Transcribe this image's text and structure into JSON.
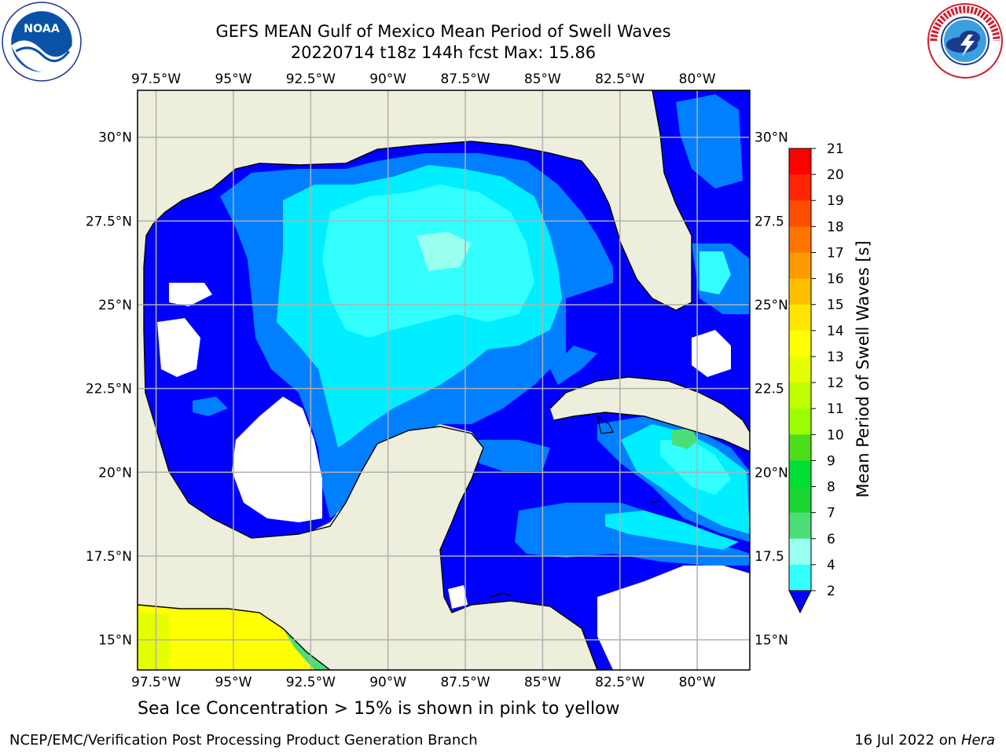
{
  "header": {
    "title_line1": "GEFS MEAN Gulf of Mexico Mean Period of Swell Waves",
    "title_line2": "20220714 t18z 144h fcst   Max: 15.86"
  },
  "logos": {
    "left": "noaa-logo",
    "right": "national-weather-service-logo"
  },
  "map": {
    "lon_ticks": [
      "97.5°W",
      "95°W",
      "92.5°W",
      "90°W",
      "87.5°W",
      "85°W",
      "82.5°W",
      "80°W"
    ],
    "lat_ticks_left": [
      "30°N",
      "27.5°N",
      "25°N",
      "22.5°N",
      "20°N",
      "17.5°N",
      "15°N"
    ],
    "lat_ticks_right": [
      "30°N",
      "27.5",
      "25°N",
      "22.5",
      "20°N",
      "17.5",
      "15°N"
    ],
    "colors": {
      "land": "#eeeedc",
      "ocean_no_data": "#ffffff",
      "coast": "#000000",
      "grid": "#b0b0b0"
    }
  },
  "colorbar": {
    "label": "Mean Period of Swell Waves [s]",
    "ticks": [
      "21",
      "20",
      "19",
      "18",
      "17",
      "16",
      "15",
      "14",
      "13",
      "12",
      "11",
      "10",
      "9",
      "8",
      "7",
      "6",
      "4",
      "2"
    ],
    "colors_top_to_bottom": [
      "#ff0000",
      "#ff2600",
      "#ff4d00",
      "#ff7300",
      "#ff9900",
      "#ffbf00",
      "#ffe600",
      "#ffff00",
      "#e6ff00",
      "#bfff00",
      "#99ff00",
      "#4ddd1a",
      "#00dd33",
      "#1ad633",
      "#4ddd77",
      "#99ffee",
      "#33ffff",
      "#00eeff",
      "#007fff",
      "#0000ff"
    ]
  },
  "note": "Sea Ice Concentration > 15% is shown in pink to yellow",
  "footer": {
    "left": "NCEP/EMC/Verification Post Processing Product Generation Branch",
    "right_prefix": "16 Jul 2022 on ",
    "right_machine": "Hera"
  }
}
